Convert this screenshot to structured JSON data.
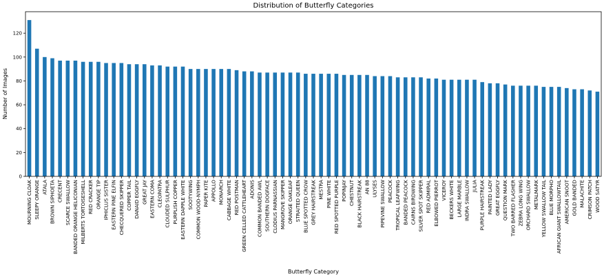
{
  "chart_data": {
    "type": "bar",
    "title": "Distribution of Butterfly Categories",
    "x_label": "Butterfly Category",
    "y_label": "Number of Images",
    "color": "#1f77b4",
    "categories": [
      "MOURNING CLOAK",
      "SLEEPY ORANGE",
      "ATALA",
      "BROWN SIPHOETA",
      "CRECENT",
      "SCARCE SWALLOW",
      "BANDED ORANGE HELICONIAN",
      "MILBERTS TORTOISESHELL",
      "RED CRACKER",
      "ORANGE TIP",
      "IPHICLUS SISTER",
      "EASTERN PINE ELFIN",
      "CHECQUERED SKIPPER",
      "COPPER TAIL",
      "DANAID EGGFLY",
      "GREAT JAY",
      "EASTERN COMA",
      "CLEOPATRA",
      "CLOUDED SULPHUR",
      "PURPLISH COPPER",
      "EASTERN DAPPLE WHITE",
      "SOOTYWING",
      "COMMON WOOD-NYMPH",
      "PAPER KITE",
      "APPOLLO",
      "MONARCH",
      "CABBAGE WHITE",
      "RED POSTMAN",
      "GREEN CELLED CATTLEHEART",
      "ADONIS",
      "COMMON BANDED AWL",
      "SOUTHERN DOGFACE",
      "CLODIUS PARNASSIAN",
      "MANGROVE SKIPPER",
      "ORANGE OAKLEAF",
      "STRAITED QUEEN",
      "BLUE SPOTTED CROW",
      "GREY HAIRSTREAK",
      "MESTRA",
      "PINE WHITE",
      "RED SPOTTED PURPLE",
      "POPINJAY",
      "CHESTNUT",
      "BLACK HAIRSTREAK",
      "AN 88",
      "ULYSES",
      "PIPEVINE SWALLOW",
      "PEACOCK",
      "TROPICAL LEAFWING",
      "BANDED PEACOCK",
      "CAIRNS BIRDWING",
      "SILVER SPOT SKIPPER",
      "RED ADMIRAL",
      "ELBOWED PIERROT",
      "VICEROY",
      "BECKERS WHITE",
      "LARGE MARBLE",
      "INDRA SWALLOW",
      "JULIA",
      "PURPLE HAIRSTREAK",
      "PAINTED LADY",
      "GREAT EGGFLY",
      "QUESTION MARK",
      "TWO BARRED FLASHER",
      "ZEBRA LONG WING",
      "ORCHARD SWALLOW",
      "METALMARK",
      "YELLOW SWALLOW TAIL",
      "BLUE MORPHO",
      "AFRICAN GIANT SWALLOWTAIL",
      "AMERICAN SNOOT",
      "GOLD BANDED",
      "MALACHITE",
      "CRIMSON PATCH",
      "WOOD SATYR"
    ],
    "values": [
      131,
      107,
      100,
      99,
      97,
      97,
      97,
      96,
      96,
      96,
      95,
      95,
      95,
      94,
      94,
      94,
      93,
      93,
      92,
      92,
      92,
      90,
      90,
      90,
      90,
      90,
      90,
      89,
      88,
      88,
      87,
      87,
      87,
      87,
      87,
      87,
      86,
      86,
      86,
      86,
      86,
      85,
      85,
      85,
      85,
      84,
      84,
      84,
      83,
      83,
      83,
      83,
      82,
      82,
      81,
      81,
      81,
      81,
      81,
      79,
      78,
      78,
      77,
      76,
      76,
      76,
      76,
      75,
      75,
      75,
      74,
      73,
      73,
      72,
      71
    ],
    "ylim": [
      0,
      138
    ],
    "yticks": [
      0,
      20,
      40,
      60,
      80,
      100,
      120
    ]
  }
}
